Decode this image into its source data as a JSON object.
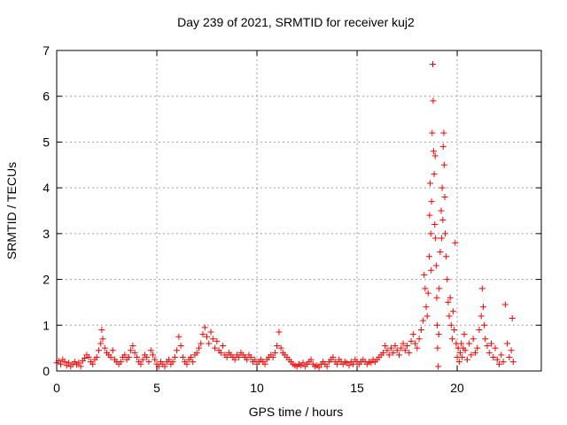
{
  "chart_data": {
    "type": "scatter",
    "title": "Day 239 of 2021, SRMTID for receiver kuj2",
    "xlabel": "GPS time / hours",
    "ylabel": "SRMTID / TECUs",
    "xlim": [
      0,
      24.2
    ],
    "ylim": [
      0,
      7
    ],
    "xticks": [
      0,
      5,
      10,
      15,
      20
    ],
    "yticks": [
      0,
      1,
      2,
      3,
      4,
      5,
      6,
      7
    ],
    "grid": true,
    "legend": "none",
    "marker": "plus",
    "color": "#ff0000",
    "series": [
      {
        "values": [
          [
            0.0,
            0.18
          ],
          [
            0.1,
            0.22
          ],
          [
            0.2,
            0.15
          ],
          [
            0.3,
            0.25
          ],
          [
            0.4,
            0.2
          ],
          [
            0.5,
            0.12
          ],
          [
            0.6,
            0.18
          ],
          [
            0.7,
            0.1
          ],
          [
            0.8,
            0.15
          ],
          [
            0.9,
            0.2
          ],
          [
            1.0,
            0.14
          ],
          [
            1.1,
            0.18
          ],
          [
            1.2,
            0.1
          ],
          [
            1.3,
            0.22
          ],
          [
            1.4,
            0.28
          ],
          [
            1.5,
            0.35
          ],
          [
            1.6,
            0.3
          ],
          [
            1.7,
            0.2
          ],
          [
            1.8,
            0.15
          ],
          [
            1.9,
            0.25
          ],
          [
            2.0,
            0.3
          ],
          [
            2.1,
            0.45
          ],
          [
            2.2,
            0.6
          ],
          [
            2.25,
            0.9
          ],
          [
            2.3,
            0.7
          ],
          [
            2.4,
            0.5
          ],
          [
            2.5,
            0.4
          ],
          [
            2.6,
            0.35
          ],
          [
            2.7,
            0.3
          ],
          [
            2.8,
            0.45
          ],
          [
            2.9,
            0.25
          ],
          [
            3.0,
            0.2
          ],
          [
            3.1,
            0.15
          ],
          [
            3.2,
            0.2
          ],
          [
            3.3,
            0.3
          ],
          [
            3.4,
            0.35
          ],
          [
            3.5,
            0.25
          ],
          [
            3.6,
            0.3
          ],
          [
            3.7,
            0.45
          ],
          [
            3.8,
            0.55
          ],
          [
            3.9,
            0.4
          ],
          [
            4.0,
            0.3
          ],
          [
            4.1,
            0.2
          ],
          [
            4.2,
            0.15
          ],
          [
            4.3,
            0.25
          ],
          [
            4.4,
            0.35
          ],
          [
            4.5,
            0.3
          ],
          [
            4.6,
            0.2
          ],
          [
            4.7,
            0.45
          ],
          [
            4.8,
            0.35
          ],
          [
            4.9,
            0.25
          ],
          [
            5.0,
            0.15
          ],
          [
            5.1,
            0.1
          ],
          [
            5.2,
            0.2
          ],
          [
            5.3,
            0.15
          ],
          [
            5.4,
            0.1
          ],
          [
            5.5,
            0.2
          ],
          [
            5.6,
            0.25
          ],
          [
            5.7,
            0.15
          ],
          [
            5.8,
            0.2
          ],
          [
            5.9,
            0.3
          ],
          [
            6.0,
            0.45
          ],
          [
            6.1,
            0.75
          ],
          [
            6.2,
            0.55
          ],
          [
            6.3,
            0.3
          ],
          [
            6.4,
            0.2
          ],
          [
            6.5,
            0.15
          ],
          [
            6.6,
            0.25
          ],
          [
            6.7,
            0.3
          ],
          [
            6.8,
            0.2
          ],
          [
            6.9,
            0.35
          ],
          [
            7.0,
            0.4
          ],
          [
            7.1,
            0.5
          ],
          [
            7.2,
            0.6
          ],
          [
            7.3,
            0.8
          ],
          [
            7.4,
            0.95
          ],
          [
            7.5,
            0.75
          ],
          [
            7.6,
            0.6
          ],
          [
            7.7,
            0.85
          ],
          [
            7.8,
            0.7
          ],
          [
            7.9,
            0.5
          ],
          [
            8.0,
            0.65
          ],
          [
            8.1,
            0.45
          ],
          [
            8.2,
            0.4
          ],
          [
            8.3,
            0.55
          ],
          [
            8.4,
            0.35
          ],
          [
            8.5,
            0.3
          ],
          [
            8.6,
            0.4
          ],
          [
            8.7,
            0.35
          ],
          [
            8.8,
            0.3
          ],
          [
            8.9,
            0.25
          ],
          [
            9.0,
            0.35
          ],
          [
            9.1,
            0.3
          ],
          [
            9.2,
            0.4
          ],
          [
            9.3,
            0.35
          ],
          [
            9.4,
            0.3
          ],
          [
            9.5,
            0.25
          ],
          [
            9.6,
            0.35
          ],
          [
            9.7,
            0.3
          ],
          [
            9.8,
            0.2
          ],
          [
            9.9,
            0.25
          ],
          [
            10.0,
            0.15
          ],
          [
            10.1,
            0.2
          ],
          [
            10.2,
            0.25
          ],
          [
            10.3,
            0.2
          ],
          [
            10.4,
            0.15
          ],
          [
            10.5,
            0.25
          ],
          [
            10.6,
            0.3
          ],
          [
            10.7,
            0.35
          ],
          [
            10.8,
            0.3
          ],
          [
            10.9,
            0.4
          ],
          [
            11.0,
            0.55
          ],
          [
            11.1,
            0.85
          ],
          [
            11.2,
            0.5
          ],
          [
            11.3,
            0.4
          ],
          [
            11.4,
            0.35
          ],
          [
            11.5,
            0.3
          ],
          [
            11.6,
            0.25
          ],
          [
            11.7,
            0.2
          ],
          [
            11.8,
            0.15
          ],
          [
            11.9,
            0.12
          ],
          [
            12.0,
            0.1
          ],
          [
            12.1,
            0.15
          ],
          [
            12.2,
            0.12
          ],
          [
            12.3,
            0.18
          ],
          [
            12.4,
            0.1
          ],
          [
            12.5,
            0.15
          ],
          [
            12.6,
            0.2
          ],
          [
            12.7,
            0.25
          ],
          [
            12.8,
            0.15
          ],
          [
            12.9,
            0.1
          ],
          [
            13.0,
            0.12
          ],
          [
            13.1,
            0.08
          ],
          [
            13.2,
            0.15
          ],
          [
            13.3,
            0.2
          ],
          [
            13.4,
            0.15
          ],
          [
            13.5,
            0.1
          ],
          [
            13.6,
            0.2
          ],
          [
            13.7,
            0.25
          ],
          [
            13.8,
            0.3
          ],
          [
            13.9,
            0.2
          ],
          [
            14.0,
            0.15
          ],
          [
            14.1,
            0.25
          ],
          [
            14.2,
            0.2
          ],
          [
            14.3,
            0.15
          ],
          [
            14.4,
            0.2
          ],
          [
            14.5,
            0.18
          ],
          [
            14.6,
            0.12
          ],
          [
            14.7,
            0.2
          ],
          [
            14.8,
            0.15
          ],
          [
            14.9,
            0.25
          ],
          [
            15.0,
            0.2
          ],
          [
            15.1,
            0.15
          ],
          [
            15.2,
            0.2
          ],
          [
            15.3,
            0.25
          ],
          [
            15.4,
            0.2
          ],
          [
            15.5,
            0.15
          ],
          [
            15.6,
            0.2
          ],
          [
            15.7,
            0.18
          ],
          [
            15.8,
            0.25
          ],
          [
            15.9,
            0.2
          ],
          [
            16.0,
            0.25
          ],
          [
            16.1,
            0.3
          ],
          [
            16.2,
            0.35
          ],
          [
            16.3,
            0.4
          ],
          [
            16.4,
            0.55
          ],
          [
            16.5,
            0.45
          ],
          [
            16.6,
            0.35
          ],
          [
            16.7,
            0.5
          ],
          [
            16.8,
            0.4
          ],
          [
            16.9,
            0.55
          ],
          [
            17.0,
            0.45
          ],
          [
            17.1,
            0.35
          ],
          [
            17.2,
            0.5
          ],
          [
            17.3,
            0.6
          ],
          [
            17.4,
            0.45
          ],
          [
            17.5,
            0.55
          ],
          [
            17.6,
            0.4
          ],
          [
            17.7,
            0.65
          ],
          [
            17.8,
            0.8
          ],
          [
            17.9,
            0.6
          ],
          [
            18.0,
            0.5
          ],
          [
            18.1,
            0.7
          ],
          [
            18.2,
            0.9
          ],
          [
            18.3,
            1.1
          ],
          [
            18.35,
            2.1
          ],
          [
            18.4,
            1.8
          ],
          [
            18.45,
            1.4
          ],
          [
            18.5,
            1.2
          ],
          [
            18.55,
            1.7
          ],
          [
            18.6,
            2.5
          ],
          [
            18.62,
            3.4
          ],
          [
            18.65,
            4.1
          ],
          [
            18.68,
            3.0
          ],
          [
            18.7,
            2.2
          ],
          [
            18.72,
            3.7
          ],
          [
            18.75,
            5.2
          ],
          [
            18.78,
            6.7
          ],
          [
            18.8,
            5.9
          ],
          [
            18.82,
            4.8
          ],
          [
            18.85,
            4.3
          ],
          [
            18.88,
            3.2
          ],
          [
            18.9,
            4.7
          ],
          [
            18.92,
            2.9
          ],
          [
            18.95,
            2.3
          ],
          [
            18.98,
            1.6
          ],
          [
            19.0,
            1.0
          ],
          [
            19.02,
            0.5
          ],
          [
            19.05,
            0.1
          ],
          [
            19.08,
            0.8
          ],
          [
            19.1,
            1.8
          ],
          [
            19.15,
            2.6
          ],
          [
            19.2,
            3.5
          ],
          [
            19.22,
            2.9
          ],
          [
            19.25,
            4.0
          ],
          [
            19.28,
            3.3
          ],
          [
            19.3,
            4.9
          ],
          [
            19.33,
            5.2
          ],
          [
            19.35,
            4.5
          ],
          [
            19.38,
            3.8
          ],
          [
            19.4,
            3.0
          ],
          [
            19.45,
            2.5
          ],
          [
            19.5,
            2.0
          ],
          [
            19.55,
            1.5
          ],
          [
            19.6,
            1.2
          ],
          [
            19.65,
            1.6
          ],
          [
            19.7,
            1.0
          ],
          [
            19.75,
            0.7
          ],
          [
            19.8,
            1.3
          ],
          [
            19.85,
            0.9
          ],
          [
            19.9,
            2.8
          ],
          [
            19.95,
            0.6
          ],
          [
            20.0,
            0.3
          ],
          [
            20.05,
            0.5
          ],
          [
            20.1,
            0.2
          ],
          [
            20.15,
            0.4
          ],
          [
            20.2,
            0.6
          ],
          [
            20.25,
            0.3
          ],
          [
            20.3,
            0.5
          ],
          [
            20.35,
            0.8
          ],
          [
            20.4,
            0.45
          ],
          [
            20.5,
            0.25
          ],
          [
            20.6,
            0.6
          ],
          [
            20.7,
            0.35
          ],
          [
            20.8,
            0.7
          ],
          [
            20.9,
            0.4
          ],
          [
            21.0,
            0.5
          ],
          [
            21.1,
            0.9
          ],
          [
            21.2,
            1.2
          ],
          [
            21.25,
            1.8
          ],
          [
            21.3,
            1.4
          ],
          [
            21.35,
            1.0
          ],
          [
            21.4,
            0.7
          ],
          [
            21.5,
            0.55
          ],
          [
            21.6,
            0.4
          ],
          [
            21.7,
            0.6
          ],
          [
            21.8,
            0.3
          ],
          [
            21.9,
            0.5
          ],
          [
            22.0,
            0.25
          ],
          [
            22.1,
            0.15
          ],
          [
            22.2,
            0.35
          ],
          [
            22.3,
            0.2
          ],
          [
            22.4,
            1.45
          ],
          [
            22.5,
            0.6
          ],
          [
            22.6,
            0.3
          ],
          [
            22.7,
            0.45
          ],
          [
            22.75,
            1.15
          ],
          [
            22.8,
            0.2
          ]
        ]
      }
    ]
  }
}
